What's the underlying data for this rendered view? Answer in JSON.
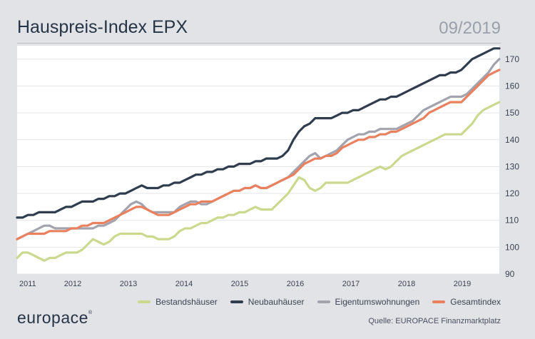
{
  "header": {
    "title": "Hauspreis-Index EPX",
    "date": "09/2019"
  },
  "footer": {
    "logo": "europace",
    "source": "Quelle: EUROPACE Finanzmarktplatz"
  },
  "colors": {
    "Bestandshäuser": "#cbd98f",
    "Neubauhäuser": "#2f3d4f",
    "Eigentumswohnungen": "#a3a3ae",
    "Gesamtindex": "#e9815f"
  },
  "chart_data": {
    "type": "line",
    "title": "Hauspreis-Index EPX",
    "x_start": "2011-01",
    "x_end": "2019-09",
    "x_ticks": [
      "2011",
      "2012",
      "2013",
      "2014",
      "2015",
      "2016",
      "2017",
      "2018",
      "2019"
    ],
    "ylim": [
      90,
      175
    ],
    "y_ticks": [
      90,
      100,
      110,
      120,
      130,
      140,
      150,
      160,
      170
    ],
    "grid": "horizontal",
    "legend": "bottom",
    "series": [
      {
        "name": "Bestandshäuser",
        "color": "#cbd98f",
        "values": [
          96,
          98,
          98,
          97,
          96,
          95,
          96,
          96,
          97,
          98,
          98,
          98,
          99,
          101,
          103,
          102,
          101,
          102,
          104,
          105,
          105,
          105,
          105,
          105,
          104,
          104,
          103,
          103,
          103,
          104,
          106,
          107,
          107,
          108,
          109,
          109,
          110,
          111,
          111,
          112,
          112,
          113,
          113,
          114,
          115,
          114,
          114,
          114,
          116,
          118,
          120,
          123,
          126,
          125,
          122,
          121,
          122,
          124,
          124,
          124,
          124,
          124,
          125,
          126,
          127,
          128,
          129,
          130,
          129,
          130,
          132,
          134,
          135,
          136,
          137,
          138,
          139,
          140,
          141,
          142,
          142,
          142,
          142,
          144,
          146,
          149,
          151,
          152,
          153,
          154
        ]
      },
      {
        "name": "Neubauhäuser",
        "color": "#2f3d4f",
        "values": [
          111,
          111,
          112,
          112,
          113,
          113,
          113,
          113,
          114,
          115,
          115,
          116,
          117,
          117,
          117,
          118,
          118,
          119,
          119,
          120,
          120,
          121,
          122,
          123,
          122,
          122,
          122,
          123,
          123,
          124,
          124,
          125,
          126,
          127,
          127,
          128,
          128,
          129,
          129,
          130,
          130,
          131,
          131,
          131,
          132,
          132,
          133,
          133,
          133,
          134,
          136,
          140,
          143,
          145,
          146,
          148,
          148,
          148,
          148,
          149,
          150,
          150,
          151,
          151,
          152,
          153,
          154,
          155,
          155,
          156,
          156,
          157,
          158,
          159,
          160,
          161,
          162,
          163,
          164,
          164,
          165,
          165,
          166,
          168,
          170,
          171,
          172,
          173,
          174,
          174
        ]
      },
      {
        "name": "Eigentumswohnungen",
        "color": "#a3a3ae",
        "values": [
          103,
          104,
          105,
          106,
          107,
          108,
          108,
          107,
          107,
          107,
          107,
          107,
          107,
          107,
          107,
          108,
          108,
          109,
          110,
          112,
          114,
          116,
          117,
          116,
          114,
          113,
          113,
          113,
          113,
          113,
          115,
          116,
          117,
          117,
          116,
          116,
          117,
          118,
          119,
          120,
          121,
          121,
          122,
          122,
          123,
          122,
          122,
          123,
          124,
          125,
          126,
          128,
          130,
          132,
          134,
          135,
          133,
          134,
          135,
          136,
          138,
          140,
          141,
          142,
          142,
          143,
          143,
          144,
          144,
          144,
          144,
          145,
          146,
          147,
          149,
          151,
          152,
          153,
          154,
          155,
          156,
          156,
          156,
          157,
          159,
          161,
          163,
          165,
          168,
          170
        ]
      },
      {
        "name": "Gesamtindex",
        "color": "#e9815f",
        "values": [
          103,
          104,
          105,
          105,
          105,
          105,
          106,
          106,
          106,
          106,
          107,
          107,
          108,
          108,
          109,
          109,
          109,
          110,
          111,
          112,
          113,
          114,
          115,
          115,
          114,
          113,
          112,
          112,
          112,
          113,
          114,
          115,
          116,
          116,
          117,
          117,
          117,
          118,
          119,
          120,
          121,
          121,
          122,
          122,
          123,
          122,
          122,
          123,
          124,
          125,
          126,
          127,
          129,
          131,
          132,
          133,
          133,
          134,
          134,
          135,
          137,
          138,
          139,
          140,
          140,
          141,
          141,
          142,
          142,
          143,
          143,
          144,
          145,
          146,
          147,
          148,
          150,
          151,
          152,
          153,
          154,
          154,
          154,
          156,
          158,
          160,
          162,
          164,
          165,
          166
        ]
      }
    ]
  }
}
